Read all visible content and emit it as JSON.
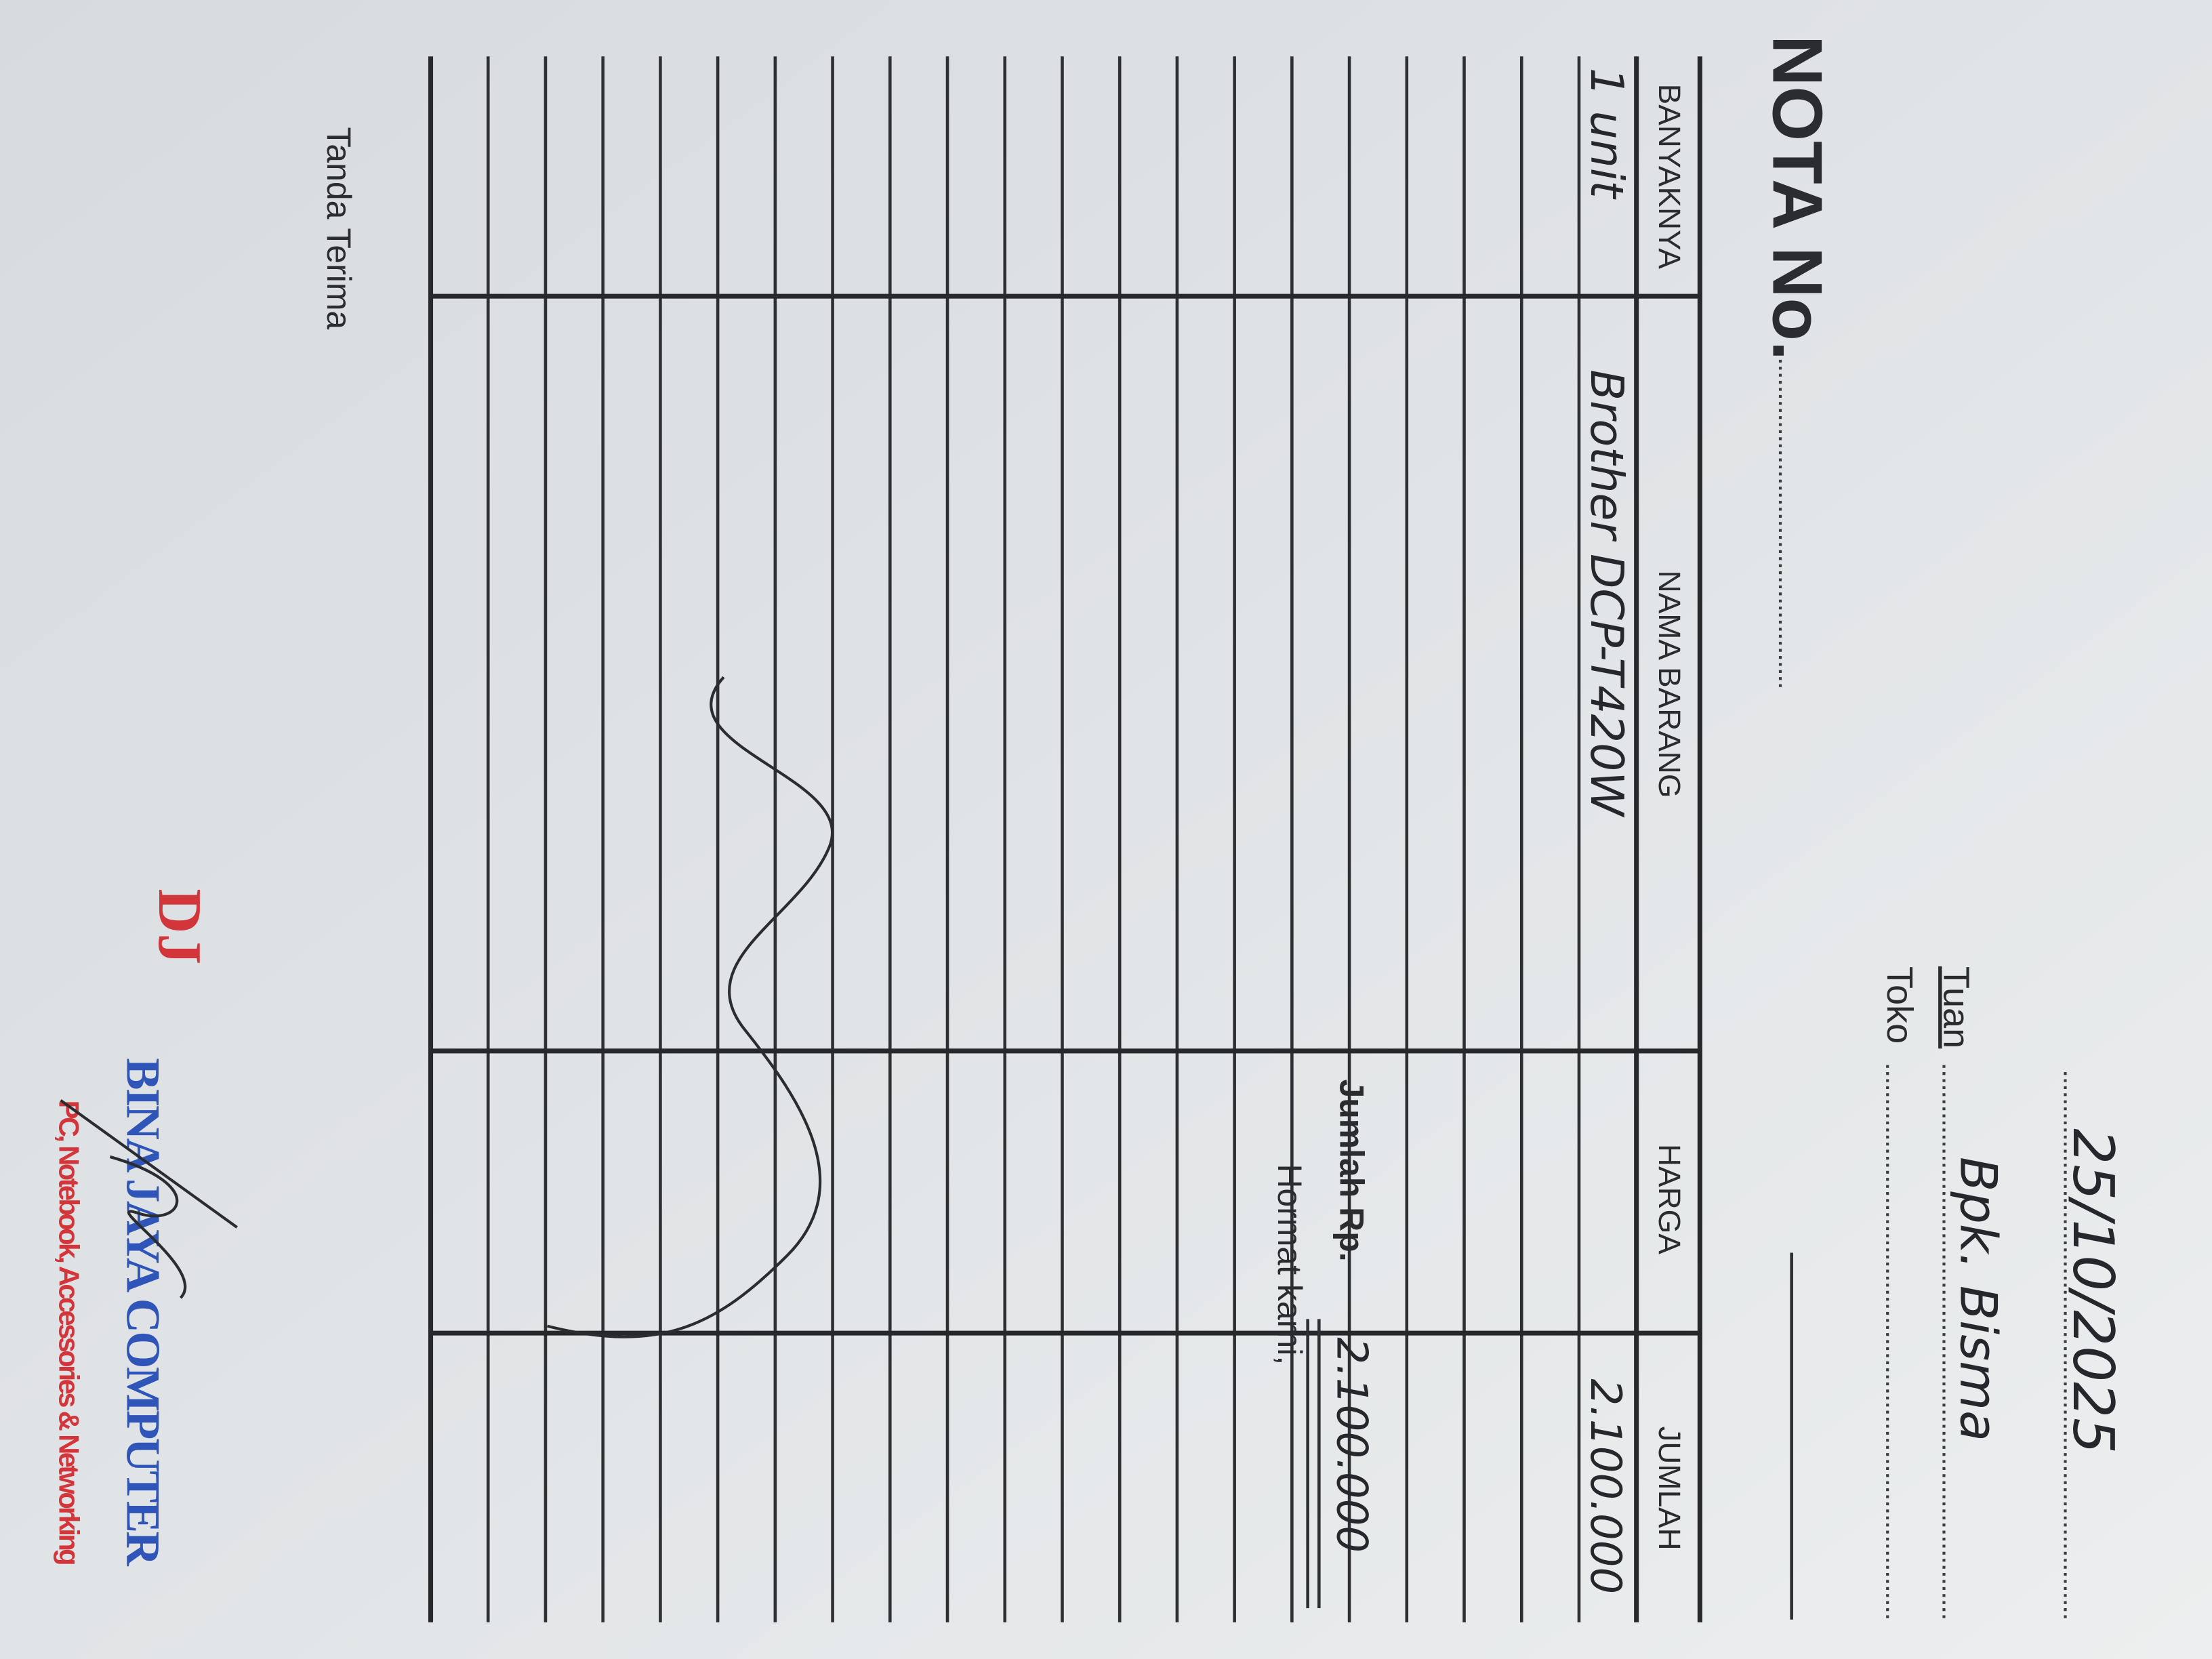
{
  "header": {
    "title": "NOTA No.",
    "date": "25/10/2025",
    "tuan_label": "Tuan",
    "tuan": "Bpk. Bisma",
    "toko_label": "Toko"
  },
  "table": {
    "columns": [
      "BANYAKNYA",
      "NAMA BARANG",
      "HARGA",
      "JUMLAH"
    ],
    "rows": [
      {
        "banyaknya": "1 unit",
        "nama_barang": "Brother DCP-T420W",
        "jumlah": "2.100.000"
      }
    ]
  },
  "footer": {
    "total_label": "Jumlah Rp.",
    "total": "2.100.000",
    "closing": "Hormat kami,",
    "receipt_label": "Tanda Terima"
  },
  "logo": {
    "mark": "DJ",
    "name": "BINA JAYA COMPUTER",
    "tagline": "PC, Notebook, Accessories & Networking"
  }
}
